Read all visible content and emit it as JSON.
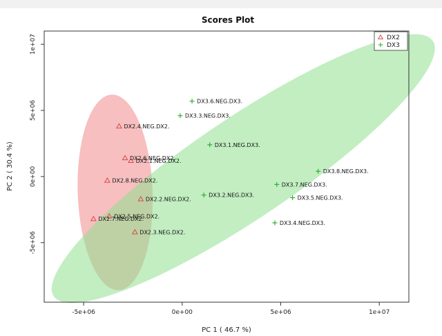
{
  "chart_data": {
    "type": "scatter",
    "title": "Scores Plot",
    "xlabel": "PC 1 ( 46.7 %)",
    "ylabel": "PC 2 ( 30.4 %)",
    "xlim": [
      -7000000,
      11500000
    ],
    "ylim": [
      -9500000,
      11000000
    ],
    "x_ticks": [
      {
        "value": -5000000,
        "label": "-5e+06"
      },
      {
        "value": 0,
        "label": "0e+00"
      },
      {
        "value": 5000000,
        "label": "5e+06"
      },
      {
        "value": 10000000,
        "label": "1e+07"
      }
    ],
    "y_ticks": [
      {
        "value": -5000000,
        "label": "-5e+06"
      },
      {
        "value": 0,
        "label": "0e+00"
      },
      {
        "value": 5000000,
        "label": "5e+06"
      },
      {
        "value": 10000000,
        "label": "1e+07"
      }
    ],
    "grid": false,
    "legend_position": "top-right",
    "series": [
      {
        "name": "DX2",
        "color": "#d94a4a",
        "fill": "#f08a8a",
        "marker": "triangle",
        "ellipse": {
          "cx": -3400000,
          "cy": -1200000,
          "rx": 1900000,
          "ry": 7400000,
          "rotation_deg": 2
        },
        "points": [
          {
            "x": -3200000,
            "y": 3800000,
            "label": "DX2.4.NEG.DX2."
          },
          {
            "x": -2900000,
            "y": 1400000,
            "label": "DX2.6.NEG.DX2."
          },
          {
            "x": -2600000,
            "y": 1200000,
            "label": "DX2.1.NEG.DX2."
          },
          {
            "x": -3800000,
            "y": -300000,
            "label": "DX2.8.NEG.DX2."
          },
          {
            "x": -2100000,
            "y": -1700000,
            "label": "DX2.2.NEG.DX2."
          },
          {
            "x": -3700000,
            "y": -3000000,
            "label": "DX2.5.NEG.DX2."
          },
          {
            "x": -4500000,
            "y": -3200000,
            "label": "DX2.7.NEG.DX2."
          },
          {
            "x": -2400000,
            "y": -4200000,
            "label": "DX2.3.NEG.DX2."
          }
        ]
      },
      {
        "name": "DX3",
        "color": "#22aa22",
        "fill": "#8fe08f",
        "marker": "plus",
        "ellipse": {
          "cx": 3100000,
          "cy": 600000,
          "rx": 11600000,
          "ry": 3800000,
          "rotation_deg": 34
        },
        "points": [
          {
            "x": 500000,
            "y": 5700000,
            "label": "DX3.6.NEG.DX3."
          },
          {
            "x": -100000,
            "y": 4600000,
            "label": "DX3.3.NEG.DX3."
          },
          {
            "x": 1400000,
            "y": 2400000,
            "label": "DX3.1.NEG.DX3."
          },
          {
            "x": 6900000,
            "y": 400000,
            "label": "DX3.8.NEG.DX3."
          },
          {
            "x": 4800000,
            "y": -600000,
            "label": "DX3.7.NEG.DX3."
          },
          {
            "x": 1100000,
            "y": -1400000,
            "label": "DX3.2.NEG.DX3."
          },
          {
            "x": 5600000,
            "y": -1600000,
            "label": "DX3.5.NEG.DX3."
          },
          {
            "x": 4700000,
            "y": -3500000,
            "label": "DX3.4.NEG.DX3."
          }
        ]
      }
    ]
  }
}
